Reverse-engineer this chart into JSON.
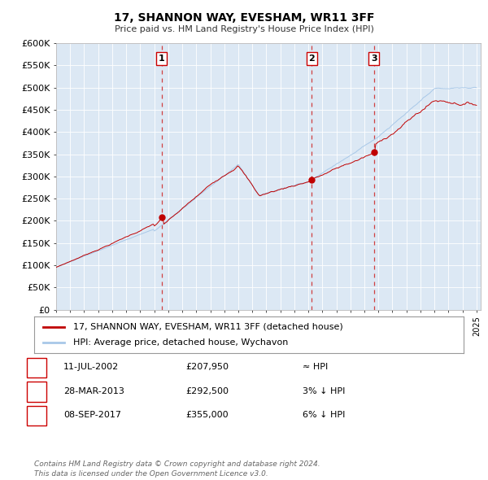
{
  "title": "17, SHANNON WAY, EVESHAM, WR11 3FF",
  "subtitle": "Price paid vs. HM Land Registry's House Price Index (HPI)",
  "legend_line1": "17, SHANNON WAY, EVESHAM, WR11 3FF (detached house)",
  "legend_line2": "HPI: Average price, detached house, Wychavon",
  "transaction_dates_decimal": [
    2002.53,
    2013.24,
    2017.69
  ],
  "transaction_prices": [
    207950,
    292500,
    355000
  ],
  "table_rows": [
    {
      "num": "1",
      "date": "11-JUL-2002",
      "price": "£207,950",
      "rel": "≈ HPI"
    },
    {
      "num": "2",
      "date": "28-MAR-2013",
      "price": "£292,500",
      "rel": "3% ↓ HPI"
    },
    {
      "num": "3",
      "date": "08-SEP-2017",
      "price": "£355,000",
      "rel": "6% ↓ HPI"
    }
  ],
  "hpi_line_color": "#a8c8e8",
  "price_line_color": "#c00000",
  "vline_color": "#d04040",
  "plot_bg_color": "#dce8f4",
  "outer_bg_color": "#ffffff",
  "grid_color": "#ffffff",
  "ylim": [
    0,
    600000
  ],
  "yticks": [
    0,
    50000,
    100000,
    150000,
    200000,
    250000,
    300000,
    350000,
    400000,
    450000,
    500000,
    550000,
    600000
  ],
  "xlim_start": 1995,
  "xlim_end": 2025.3,
  "footer": "Contains HM Land Registry data © Crown copyright and database right 2024.\nThis data is licensed under the Open Government Licence v3.0.",
  "annotation_box_color": "#ffffff",
  "annotation_box_edge": "#cc0000",
  "n_points": 360
}
